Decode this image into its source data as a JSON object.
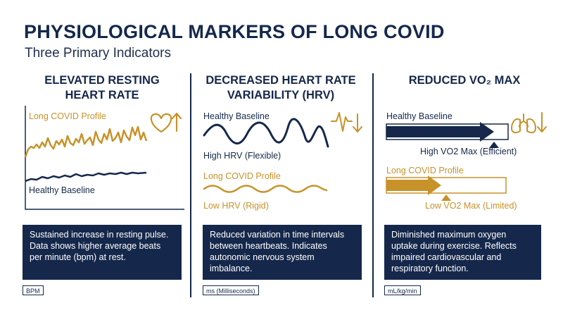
{
  "header": {
    "title": "PHYSIOLOGICAL MARKERS OF LONG COVID",
    "subtitle": "Three Primary Indicators"
  },
  "colors": {
    "navy": "#15284b",
    "gold": "#c8922a"
  },
  "columns": [
    {
      "heading_line1": "ELEVATED RESTING",
      "heading_line2": "HEART RATE",
      "long_covid_label": "Long COVID Profile",
      "healthy_label": "Healthy Baseline",
      "description": "Sustained increase in resting pulse. Data shows higher average beats per minute (bpm) at rest.",
      "unit": "BPM",
      "icon": "heart-up-arrow-icon"
    },
    {
      "heading_line1": "DECREASED HEART RATE",
      "heading_line2": "VARIABILITY (HRV)",
      "healthy_label": "Healthy Baseline",
      "healthy_note": "High HRV (Flexible)",
      "long_covid_label": "Long COVID Profile",
      "long_covid_note": "Low HRV (Rigid)",
      "description": "Reduced variation in time intervals between heartbeats. Indicates autonomic nervous system imbalance.",
      "unit": "ms (Milliseconds)",
      "icon": "heartbeat-down-arrow-icon"
    },
    {
      "heading": "REDUCED VO₂ MAX",
      "healthy_label": "Healthy Baseline",
      "healthy_note": "High VO2 Max (Efficient)",
      "long_covid_label": "Long COVID Profile",
      "long_covid_note": "Low VO2 Max (Limited)",
      "description": "Diminished maximum oxygen uptake during exercise. Reflects impaired cardiovascular and respiratory function.",
      "unit": "mL/kg/min",
      "icon": "lungs-down-arrow-icon"
    }
  ]
}
